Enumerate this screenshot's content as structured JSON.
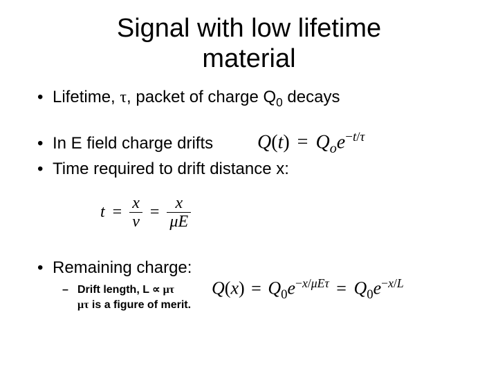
{
  "title_line1": "Signal with low lifetime",
  "title_line2": "material",
  "bullets": {
    "b1_pre": "Lifetime, ",
    "b1_tau": "τ",
    "b1_mid": ", packet of charge Q",
    "b1_sub": "0",
    "b1_post": " decays",
    "b2": "In E field charge drifts",
    "b3": "Time required to drift distance x:",
    "b4": "Remaining charge:",
    "sub1_pre": "Drift length, L ",
    "sub1_prop": "∝",
    "sub1_mt": " μτ",
    "sub2_mt": "μτ",
    "sub2_post": " is a figure of merit."
  },
  "eq1": {
    "Q": "Q",
    "t": "t",
    "eq": "=",
    "o": "o",
    "e": "e",
    "minus": "−",
    "slash": "/",
    "tau": "τ",
    "lp": "(",
    "rp": ")"
  },
  "eq2": {
    "t": "t",
    "eq": "=",
    "x": "x",
    "nu": "ν",
    "mu": "μ",
    "E": "E"
  },
  "eq3": {
    "Q": "Q",
    "x": "x",
    "eq": "=",
    "zero": "0",
    "e": "e",
    "minus": "−",
    "slash": "/",
    "mu": "μ",
    "E": "E",
    "tau": "τ",
    "L": "L",
    "lp": "(",
    "rp": ")"
  },
  "colors": {
    "text": "#000000",
    "bg": "#ffffff"
  },
  "fonts": {
    "body": "Arial",
    "math": "Times New Roman"
  }
}
